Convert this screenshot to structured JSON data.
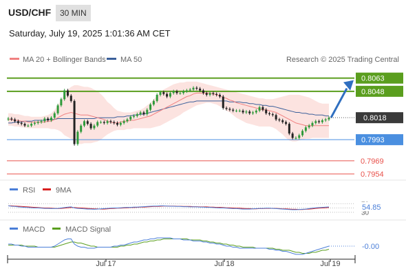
{
  "header": {
    "symbol": "USD/CHF",
    "timeframe": "30 MIN",
    "datetime": "Saturday, July 19, 2025 1:01:36 AM CET"
  },
  "legend": {
    "ma20_label": "MA 20 + Bollinger Bands",
    "ma50_label": "MA 50",
    "copyright": "Research © 2025 Trading Central"
  },
  "colors": {
    "green": "#5a9e1e",
    "blue": "#4a8fe0",
    "red": "#e8504a",
    "ma20": "#f08080",
    "ma50": "#3a5f9a",
    "band": "#fbd9d6",
    "arrow": "#2f6fc0",
    "last": "#3a3a3a"
  },
  "chart_data": [
    {
      "type": "candlestick",
      "ylim": [
        0.7947,
        0.8076
      ],
      "x_ticks": [
        "Jul 17",
        "Jul 18",
        "Jul 19"
      ],
      "last_price": "0.8018",
      "levels": [
        {
          "label": "0.8063",
          "value": 0.8063,
          "color": "green",
          "kind": "resistance"
        },
        {
          "label": "0.8048",
          "value": 0.8048,
          "color": "green",
          "kind": "resistance"
        },
        {
          "label": "0.7993",
          "value": 0.7993,
          "color": "blue",
          "kind": "pivot"
        },
        {
          "label": "0.7969",
          "value": 0.7969,
          "color": "red",
          "kind": "support"
        },
        {
          "label": "0.7954",
          "value": 0.7954,
          "color": "red",
          "kind": "support"
        }
      ],
      "forecast_arrow": {
        "from": 0.8018,
        "to": 0.8056
      },
      "series": [
        {
          "name": "Price",
          "close": [
            0.8017,
            0.8016,
            0.8014,
            0.8012,
            0.8011,
            0.8009,
            0.8009,
            0.8011,
            0.8012,
            0.8013,
            0.8014,
            0.8017,
            0.8015,
            0.8018,
            0.8023,
            0.8032,
            0.8039,
            0.8049,
            0.8043,
            0.8037,
            0.7988,
            0.8002,
            0.8009,
            0.8014,
            0.8011,
            0.8006,
            0.8009,
            0.8013,
            0.8013,
            0.8012,
            0.8014,
            0.8013,
            0.8012,
            0.801,
            0.8012,
            0.8014,
            0.8016,
            0.8019,
            0.802,
            0.8022,
            0.8024,
            0.8022,
            0.8027,
            0.8033,
            0.8037,
            0.8044,
            0.8047,
            0.8045,
            0.8042,
            0.8046,
            0.8048,
            0.8046,
            0.8046,
            0.8048,
            0.8049,
            0.805,
            0.8052,
            0.8051,
            0.8049,
            0.8046,
            0.8044,
            0.8046,
            0.8045,
            0.8044,
            0.8042,
            0.8029,
            0.8028,
            0.8027,
            0.8026,
            0.8026,
            0.8026,
            0.8024,
            0.8025,
            0.8023,
            0.8024,
            0.8026,
            0.803,
            0.8027,
            0.8023,
            0.8022,
            0.8021,
            0.8016,
            0.8015,
            0.8013,
            0.8011,
            0.8,
            0.7995,
            0.7995,
            0.7998,
            0.8003,
            0.8007,
            0.8009,
            0.8012,
            0.8014,
            0.8013,
            0.8015,
            0.8016,
            0.8018
          ]
        },
        {
          "name": "MA 20",
          "values": [
            0.8016,
            0.8016,
            0.8015,
            0.8015,
            0.8014,
            0.8014,
            0.8013,
            0.8013,
            0.8013,
            0.8013,
            0.8013,
            0.8013,
            0.8014,
            0.8014,
            0.8016,
            0.8018,
            0.802,
            0.8022,
            0.8023,
            0.8024,
            0.8023,
            0.8022,
            0.8021,
            0.8021,
            0.8021,
            0.802,
            0.8019,
            0.8018,
            0.8017,
            0.8016,
            0.8014,
            0.8013,
            0.8012,
            0.8012,
            0.8013,
            0.8014,
            0.8014,
            0.8015,
            0.8015,
            0.8016,
            0.8017,
            0.8018,
            0.8019,
            0.802,
            0.8022,
            0.8024,
            0.8026,
            0.8028,
            0.803,
            0.8032,
            0.8034,
            0.8036,
            0.8038,
            0.804,
            0.8042,
            0.8043,
            0.8045,
            0.8046,
            0.8046,
            0.8046,
            0.8046,
            0.8046,
            0.8045,
            0.8044,
            0.8043,
            0.8041,
            0.804,
            0.8038,
            0.8037,
            0.8035,
            0.8034,
            0.8033,
            0.8032,
            0.8031,
            0.803,
            0.8029,
            0.8028,
            0.8027,
            0.8027,
            0.8026,
            0.8025,
            0.8024,
            0.8022,
            0.802,
            0.8018,
            0.8016,
            0.8014,
            0.8012,
            0.8011,
            0.801,
            0.8009,
            0.8009,
            0.8009,
            0.8009,
            0.8009,
            0.8009,
            0.8009,
            0.8009
          ]
        },
        {
          "name": "MA 50",
          "values": [
            0.8012,
            0.8012,
            0.8013,
            0.8013,
            0.8013,
            0.8014,
            0.8014,
            0.8014,
            0.8015,
            0.8015,
            0.8015,
            0.8015,
            0.8016,
            0.8016,
            0.8016,
            0.8017,
            0.8017,
            0.8017,
            0.8017,
            0.8017,
            0.8017,
            0.8017,
            0.8017,
            0.8017,
            0.8017,
            0.8017,
            0.8017,
            0.8018,
            0.8018,
            0.8018,
            0.8018,
            0.8018,
            0.8018,
            0.8019,
            0.8019,
            0.8019,
            0.802,
            0.802,
            0.8021,
            0.8021,
            0.8022,
            0.8022,
            0.8023,
            0.8024,
            0.8025,
            0.8026,
            0.8027,
            0.8028,
            0.8029,
            0.803,
            0.8031,
            0.8032,
            0.8033,
            0.8034,
            0.8035,
            0.8036,
            0.8036,
            0.8037,
            0.8037,
            0.8037,
            0.8037,
            0.8037,
            0.8037,
            0.8037,
            0.8037,
            0.8037,
            0.8037,
            0.8036,
            0.8036,
            0.8036,
            0.8036,
            0.8035,
            0.8035,
            0.8034,
            0.8034,
            0.8033,
            0.8033,
            0.8032,
            0.8032,
            0.8031,
            0.8031,
            0.803,
            0.8029,
            0.8028,
            0.8027,
            0.8026,
            0.8025,
            0.8024,
            0.8024,
            0.8023,
            0.8023,
            0.8022,
            0.8022,
            0.8021,
            0.8021,
            0.8021,
            0.802,
            0.802
          ]
        },
        {
          "name": "Bollinger Bands",
          "upper": [
            0.8023,
            0.8023,
            0.8022,
            0.8022,
            0.8021,
            0.802,
            0.802,
            0.8019,
            0.8019,
            0.8019,
            0.8019,
            0.802,
            0.8021,
            0.8023,
            0.8027,
            0.8032,
            0.8038,
            0.8046,
            0.805,
            0.8053,
            0.8055,
            0.8055,
            0.8054,
            0.8053,
            0.8053,
            0.8052,
            0.805,
            0.8048,
            0.8045,
            0.8041,
            0.8036,
            0.8033,
            0.8029,
            0.8026,
            0.8025,
            0.8024,
            0.8024,
            0.8024,
            0.8025,
            0.8026,
            0.8027,
            0.8029,
            0.8032,
            0.8035,
            0.8039,
            0.8043,
            0.8047,
            0.805,
            0.8052,
            0.8054,
            0.8056,
            0.8057,
            0.8058,
            0.8058,
            0.8059,
            0.8059,
            0.8059,
            0.8059,
            0.8058,
            0.8057,
            0.8056,
            0.8055,
            0.8054,
            0.8053,
            0.8052,
            0.8051,
            0.805,
            0.8049,
            0.8048,
            0.8047,
            0.8046,
            0.8045,
            0.8044,
            0.8043,
            0.8042,
            0.8041,
            0.804,
            0.804,
            0.8039,
            0.8039,
            0.8039,
            0.804,
            0.8041,
            0.8042,
            0.8043,
            0.8044,
            0.8044,
            0.8044,
            0.8044,
            0.8043,
            0.8042,
            0.8041,
            0.8039,
            0.8037,
            0.8035,
            0.8034,
            0.8034,
            0.8034
          ],
          "lower": [
            0.8009,
            0.8009,
            0.8008,
            0.8008,
            0.8007,
            0.8007,
            0.8006,
            0.8006,
            0.8006,
            0.8006,
            0.8006,
            0.8006,
            0.8006,
            0.8005,
            0.8005,
            0.8004,
            0.8002,
            0.7998,
            0.7996,
            0.7994,
            0.7991,
            0.7989,
            0.7988,
            0.7989,
            0.7989,
            0.7989,
            0.799,
            0.7991,
            0.7993,
            0.7996,
            0.7999,
            0.8001,
            0.8003,
            0.8004,
            0.8004,
            0.8004,
            0.8005,
            0.8005,
            0.8006,
            0.8006,
            0.8006,
            0.8006,
            0.8006,
            0.8006,
            0.8007,
            0.8008,
            0.8009,
            0.8011,
            0.8013,
            0.8015,
            0.8017,
            0.8019,
            0.8021,
            0.8024,
            0.8026,
            0.8028,
            0.803,
            0.8032,
            0.8033,
            0.8034,
            0.8035,
            0.8035,
            0.8034,
            0.8033,
            0.8031,
            0.8029,
            0.8026,
            0.8024,
            0.8021,
            0.8018,
            0.8016,
            0.8014,
            0.8012,
            0.8011,
            0.801,
            0.8009,
            0.8008,
            0.8008,
            0.8008,
            0.8008,
            0.8007,
            0.8005,
            0.8002,
            0.7999,
            0.7995,
            0.7992,
            0.7991,
            0.7991,
            0.7992,
            0.7993,
            0.7994,
            0.7994,
            0.7995,
            0.7995,
            0.7995,
            0.7995,
            0.7995,
            0.7995
          ]
        }
      ]
    },
    {
      "type": "line",
      "title": "RSI",
      "ylim": [
        0,
        100
      ],
      "reference_lines": [
        "70",
        "50",
        "30"
      ],
      "last_label": "54.85",
      "series": [
        {
          "name": "RSI",
          "values": [
            60,
            58,
            57,
            55,
            54,
            53,
            52,
            51,
            50,
            50,
            49,
            48,
            48,
            47,
            47,
            48,
            50,
            52,
            54,
            55,
            50,
            48,
            47,
            46,
            45,
            45,
            44,
            45,
            46,
            47,
            48,
            49,
            50,
            50,
            51,
            52,
            53,
            53,
            54,
            54,
            55,
            56,
            57,
            58,
            59,
            59,
            60,
            60,
            59,
            58,
            58,
            57,
            57,
            56,
            56,
            55,
            55,
            55,
            54,
            54,
            53,
            53,
            52,
            51,
            50,
            50,
            49,
            48,
            47,
            47,
            46,
            45,
            45,
            45,
            46,
            47,
            48,
            48,
            49,
            49,
            48,
            47,
            46,
            45,
            44,
            43,
            42,
            42,
            43,
            44,
            45,
            47,
            49,
            51,
            52,
            53,
            54,
            54.85
          ]
        },
        {
          "name": "9MA",
          "values": [
            60,
            60,
            59,
            58,
            57,
            56,
            55,
            54,
            53,
            52,
            51,
            50,
            50,
            49,
            48,
            47,
            48,
            49,
            51,
            52,
            52,
            51,
            50,
            49,
            48,
            47,
            46,
            46,
            45,
            45,
            46,
            47,
            48,
            49,
            49,
            50,
            51,
            52,
            52,
            53,
            54,
            54,
            55,
            56,
            57,
            57,
            58,
            59,
            59,
            59,
            59,
            58,
            58,
            57,
            57,
            57,
            56,
            56,
            55,
            55,
            55,
            54,
            54,
            53,
            53,
            52,
            51,
            51,
            50,
            49,
            49,
            48,
            47,
            47,
            46,
            46,
            47,
            47,
            48,
            48,
            48,
            48,
            47,
            46,
            46,
            45,
            44,
            44,
            43,
            43,
            44,
            45,
            46,
            48,
            49,
            50,
            51,
            52
          ]
        }
      ]
    },
    {
      "type": "line",
      "title": "MACD",
      "last_label": "-0.00",
      "ylim": [
        -0.0012,
        0.0012
      ],
      "series": [
        {
          "name": "MACD",
          "values": [
            0.0002,
            0.0002,
            0.0001,
            0.0001,
            0.0,
            0.0,
            -0.0001,
            -0.0001,
            -0.0001,
            -0.0001,
            -0.0001,
            -0.0001,
            -0.0001,
            -0.0001,
            0.0,
            0.0002,
            0.0004,
            0.0006,
            0.0007,
            0.0007,
            0.0002,
            0.0,
            -0.0001,
            -0.0001,
            -0.0002,
            -0.0002,
            -0.0002,
            -0.0001,
            -0.0001,
            -0.0001,
            -0.0001,
            -0.0001,
            0.0,
            0.0,
            0.0001,
            0.0001,
            0.0002,
            0.0003,
            0.0004,
            0.0004,
            0.0005,
            0.0006,
            0.0006,
            0.0007,
            0.0007,
            0.0008,
            0.0008,
            0.0008,
            0.0008,
            0.0008,
            0.0007,
            0.0007,
            0.0007,
            0.0006,
            0.0006,
            0.0006,
            0.0005,
            0.0005,
            0.0005,
            0.0004,
            0.0004,
            0.0003,
            0.0003,
            0.0002,
            0.0002,
            0.0001,
            0.0,
            0.0,
            -0.0001,
            -0.0001,
            -0.0002,
            -0.0002,
            -0.0002,
            -0.0002,
            -0.0002,
            -0.0002,
            -0.0002,
            -0.0002,
            -0.0002,
            -0.0003,
            -0.0003,
            -0.0004,
            -0.0004,
            -0.0005,
            -0.0005,
            -0.0006,
            -0.0007,
            -0.0008,
            -0.0008,
            -0.0008,
            -0.0007,
            -0.0006,
            -0.0005,
            -0.0004,
            -0.0003,
            -0.0002,
            -0.0001,
            0.0
          ]
        },
        {
          "name": "MACD Signal",
          "values": [
            0.0001,
            0.0001,
            0.0001,
            0.0001,
            0.0001,
            0.0,
            0.0,
            0.0,
            0.0,
            -0.0001,
            -0.0001,
            -0.0001,
            -0.0001,
            -0.0001,
            -0.0001,
            0.0,
            0.0001,
            0.0002,
            0.0003,
            0.0004,
            0.0004,
            0.0003,
            0.0003,
            0.0002,
            0.0001,
            0.0,
            0.0,
            -0.0001,
            -0.0001,
            -0.0001,
            -0.0001,
            -0.0001,
            -0.0001,
            -0.0001,
            0.0,
            0.0,
            0.0001,
            0.0001,
            0.0002,
            0.0002,
            0.0003,
            0.0004,
            0.0004,
            0.0005,
            0.0005,
            0.0006,
            0.0006,
            0.0007,
            0.0007,
            0.0007,
            0.0007,
            0.0007,
            0.0007,
            0.0007,
            0.0007,
            0.0006,
            0.0006,
            0.0006,
            0.0006,
            0.0005,
            0.0005,
            0.0004,
            0.0004,
            0.0003,
            0.0003,
            0.0002,
            0.0002,
            0.0001,
            0.0001,
            0.0,
            0.0,
            -0.0001,
            -0.0001,
            -0.0001,
            -0.0001,
            -0.0002,
            -0.0002,
            -0.0002,
            -0.0002,
            -0.0002,
            -0.0002,
            -0.0003,
            -0.0003,
            -0.0004,
            -0.0004,
            -0.0004,
            -0.0005,
            -0.0006,
            -0.0006,
            -0.0007,
            -0.0007,
            -0.0007,
            -0.0006,
            -0.0006,
            -0.0005,
            -0.0004,
            -0.0004,
            -0.0003
          ]
        }
      ]
    }
  ]
}
